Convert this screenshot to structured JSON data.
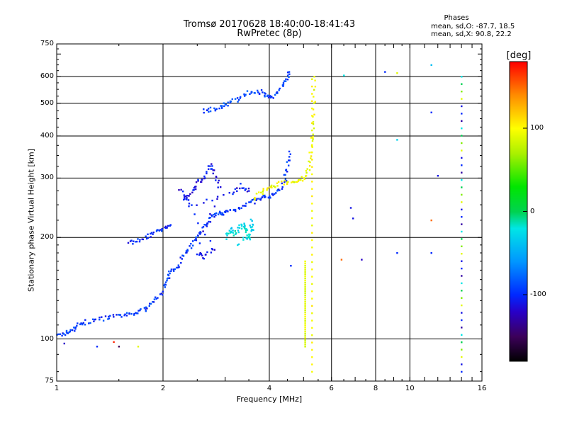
{
  "title": {
    "line1": "Tromsø 20170628 18:40:00-18:41:43",
    "line2": "RwPretec (8p)"
  },
  "phase_summary": {
    "heading": "Phases",
    "line_o": "mean, sd,O: -87.7, 18.5",
    "line_x": "mean, sd,X:  90.8, 22.2"
  },
  "colorbar": {
    "unit_label": "[deg]",
    "ticks": [
      {
        "value": 100,
        "label": "100"
      },
      {
        "value": 0,
        "label": "0"
      },
      {
        "value": -100,
        "label": "-100"
      }
    ],
    "range": [
      -180,
      180
    ]
  },
  "chart_data": {
    "type": "scatter",
    "title": "Tromsø 20170628 18:40:00-18:41:43 RwPretec (8p)",
    "xlabel": "Frequency [MHz]",
    "ylabel": "Stationary phase Virtual Height [km]",
    "x_scale": "log",
    "y_scale": "log",
    "xlim": [
      1,
      16
    ],
    "ylim": [
      75,
      750
    ],
    "xticks": [
      1,
      2,
      4,
      6,
      8,
      10,
      16
    ],
    "yticks": [
      75,
      100,
      200,
      300,
      400,
      500,
      600,
      750
    ],
    "vertical_grid": [
      2,
      4,
      6,
      8,
      10
    ],
    "horizontal_grid": [
      100,
      200,
      300,
      400,
      500,
      600
    ],
    "color_variable": "phase [deg]",
    "traces": [
      {
        "name": "O-mode E/F1 trace (blue)",
        "phase": -95,
        "points": [
          [
            1.0,
            102
          ],
          [
            1.05,
            104
          ],
          [
            1.1,
            106
          ],
          [
            1.15,
            110
          ],
          [
            1.2,
            112
          ],
          [
            1.3,
            114
          ],
          [
            1.4,
            116
          ],
          [
            1.5,
            117
          ],
          [
            1.6,
            118
          ],
          [
            1.7,
            120
          ],
          [
            1.8,
            124
          ],
          [
            1.9,
            130
          ],
          [
            2.0,
            140
          ],
          [
            2.05,
            150
          ],
          [
            2.1,
            158
          ],
          [
            2.2,
            166
          ],
          [
            2.3,
            180
          ],
          [
            2.4,
            190
          ],
          [
            2.5,
            202
          ],
          [
            2.6,
            214
          ],
          [
            2.7,
            224
          ],
          [
            2.8,
            232
          ],
          [
            2.9,
            236
          ],
          [
            3.0,
            238
          ],
          [
            3.2,
            242
          ],
          [
            3.4,
            250
          ],
          [
            3.6,
            256
          ],
          [
            3.8,
            262
          ],
          [
            4.0,
            265
          ],
          [
            4.2,
            272
          ],
          [
            4.4,
            290
          ],
          [
            4.5,
            320
          ],
          [
            4.55,
            360
          ]
        ]
      },
      {
        "name": "O-mode F2 trace (blue)",
        "phase": -90,
        "points": [
          [
            2.6,
            475
          ],
          [
            2.75,
            480
          ],
          [
            2.9,
            488
          ],
          [
            3.0,
            495
          ],
          [
            3.2,
            510
          ],
          [
            3.4,
            530
          ],
          [
            3.6,
            545
          ],
          [
            3.8,
            540
          ],
          [
            3.95,
            520
          ],
          [
            4.1,
            525
          ],
          [
            4.3,
            555
          ],
          [
            4.45,
            590
          ],
          [
            4.55,
            620
          ]
        ]
      },
      {
        "name": "Lower F1 trace (blue)",
        "phase": -100,
        "points": [
          [
            1.6,
            192
          ],
          [
            1.7,
            196
          ],
          [
            1.8,
            202
          ],
          [
            1.9,
            208
          ],
          [
            2.0,
            212
          ],
          [
            2.1,
            218
          ]
        ]
      },
      {
        "name": "X-mode F trace (yellow)",
        "phase": 95,
        "points": [
          [
            3.6,
            262
          ],
          [
            3.8,
            272
          ],
          [
            4.0,
            280
          ],
          [
            4.2,
            288
          ],
          [
            4.5,
            292
          ],
          [
            4.8,
            294
          ],
          [
            5.0,
            300
          ],
          [
            5.15,
            320
          ],
          [
            5.25,
            360
          ],
          [
            5.3,
            400
          ],
          [
            5.33,
            480
          ],
          [
            5.36,
            600
          ]
        ]
      },
      {
        "name": "Scattered returns (cyan)",
        "phase": -25,
        "points": [
          [
            3.0,
            200
          ],
          [
            3.1,
            212
          ],
          [
            3.2,
            205
          ],
          [
            3.3,
            215
          ],
          [
            3.4,
            220
          ],
          [
            3.45,
            208
          ],
          [
            3.5,
            195
          ],
          [
            3.55,
            225
          ],
          [
            3.6,
            210
          ],
          [
            3.25,
            190
          ]
        ]
      },
      {
        "name": "Scattered returns (purple/blue)",
        "phase": -110,
        "points": [
          [
            2.3,
            260
          ],
          [
            2.4,
            270
          ],
          [
            2.5,
            290
          ],
          [
            2.6,
            300
          ],
          [
            2.7,
            330
          ],
          [
            2.8,
            310
          ],
          [
            2.9,
            280
          ],
          [
            2.5,
            180
          ],
          [
            2.6,
            175
          ],
          [
            2.8,
            185
          ],
          [
            2.2,
            280
          ],
          [
            2.4,
            250
          ],
          [
            3.1,
            270
          ],
          [
            3.3,
            285
          ],
          [
            3.5,
            275
          ]
        ]
      }
    ],
    "isolated_points": [
      {
        "x": 6.5,
        "y": 605,
        "phase": -20
      },
      {
        "x": 8.5,
        "y": 620,
        "phase": -100
      },
      {
        "x": 9.2,
        "y": 615,
        "phase": 90
      },
      {
        "x": 11.5,
        "y": 650,
        "phase": -40
      },
      {
        "x": 11.5,
        "y": 470,
        "phase": -100
      },
      {
        "x": 11.5,
        "y": 225,
        "phase": 150
      },
      {
        "x": 11.5,
        "y": 180,
        "phase": -100
      },
      {
        "x": 9.2,
        "y": 180,
        "phase": -100
      },
      {
        "x": 9.2,
        "y": 390,
        "phase": -30
      },
      {
        "x": 12.0,
        "y": 305,
        "phase": -110
      },
      {
        "x": 6.8,
        "y": 245,
        "phase": -110
      },
      {
        "x": 6.9,
        "y": 228,
        "phase": -110
      },
      {
        "x": 6.4,
        "y": 172,
        "phase": 150
      },
      {
        "x": 7.3,
        "y": 172,
        "phase": -120
      },
      {
        "x": 4.6,
        "y": 165,
        "phase": -100
      },
      {
        "x": 1.3,
        "y": 95,
        "phase": -100
      },
      {
        "x": 1.45,
        "y": 98,
        "phase": 170
      },
      {
        "x": 1.5,
        "y": 95,
        "phase": -150
      },
      {
        "x": 1.7,
        "y": 95,
        "phase": 90
      },
      {
        "x": 1.05,
        "y": 97,
        "phase": -120
      }
    ],
    "vertical_columns": [
      {
        "x": 5.28,
        "y_range": [
          80,
          590
        ],
        "phase": 100
      },
      {
        "x": 5.05,
        "y_range": [
          95,
          170
        ],
        "phase": 90
      },
      {
        "x": 14.0,
        "y_range": [
          80,
          600
        ],
        "phase": -100,
        "mixed": true
      }
    ]
  }
}
